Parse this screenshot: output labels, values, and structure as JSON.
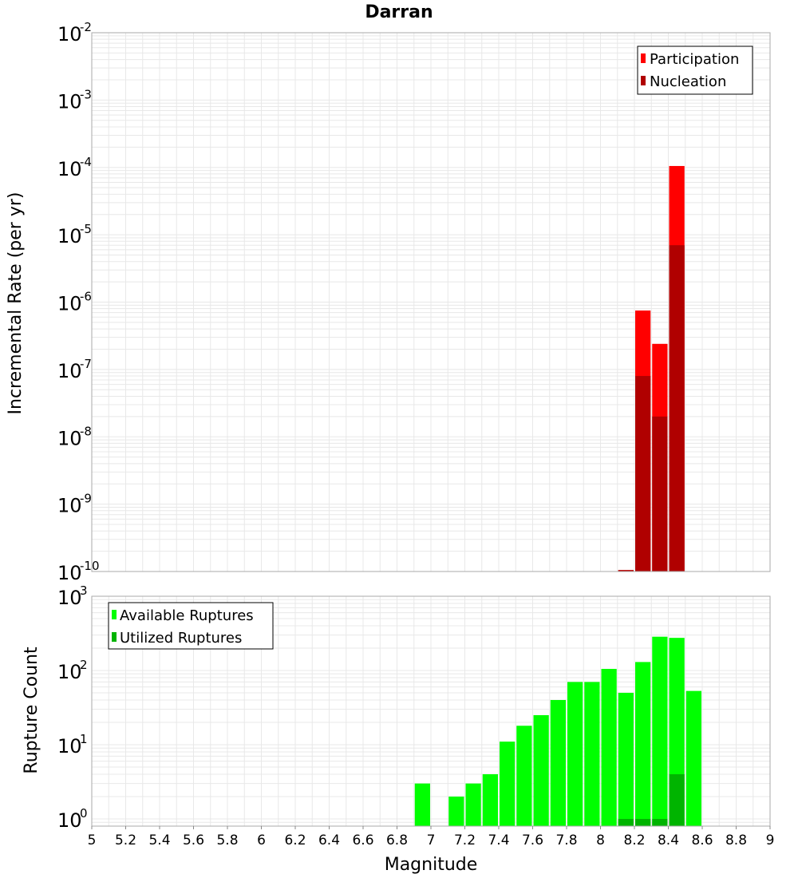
{
  "title": "Darran",
  "xlabel": "Magnitude",
  "x_ticks": [
    "5",
    "5.2",
    "5.4",
    "5.6",
    "5.8",
    "6",
    "6.2",
    "6.4",
    "6.6",
    "6.8",
    "7",
    "7.2",
    "7.4",
    "7.6",
    "7.8",
    "8",
    "8.2",
    "8.4",
    "8.6",
    "8.8",
    "9"
  ],
  "top_panel": {
    "ylabel": "Incremental Rate (per yr)",
    "y_tick_base": "10",
    "y_tick_exponents": [
      "-10",
      "-9",
      "-8",
      "-7",
      "-6",
      "-5",
      "-4",
      "-3",
      "-2"
    ],
    "legend": [
      "Participation",
      "Nucleation"
    ]
  },
  "bottom_panel": {
    "ylabel": "Rupture Count",
    "y_tick_base": "10",
    "y_tick_exponents": [
      "0",
      "1",
      "2",
      "3"
    ],
    "legend": [
      "Available Ruptures",
      "Utilized Ruptures"
    ]
  },
  "colors": {
    "participation": "#ff0000",
    "nucleation": "#b00000",
    "available": "#00ff00",
    "utilized": "#00b400",
    "grid": "#e8e8e8",
    "frame": "#aaaaaa"
  },
  "chart_data": [
    {
      "type": "bar",
      "title": "Darran",
      "xlabel": "Magnitude",
      "ylabel": "Incremental Rate (per yr)",
      "yscale": "log",
      "xlim": [
        5,
        9
      ],
      "ylim": [
        1e-10,
        0.01
      ],
      "bin_width": 0.1,
      "legend_position": "top-right",
      "grid": true,
      "series": [
        {
          "name": "Participation",
          "x": [
            8.15,
            8.25,
            8.35,
            8.45
          ],
          "values": [
            1.05e-10,
            7.5e-07,
            2.4e-07,
            0.000105
          ]
        },
        {
          "name": "Nucleation",
          "x": [
            8.15,
            8.25,
            8.35,
            8.45
          ],
          "values": [
            1.05e-10,
            8e-08,
            2e-08,
            7e-06
          ]
        }
      ]
    },
    {
      "type": "bar",
      "xlabel": "Magnitude",
      "ylabel": "Rupture Count",
      "yscale": "log",
      "xlim": [
        5,
        9
      ],
      "ylim": [
        0.8,
        1000
      ],
      "bin_width": 0.1,
      "legend_position": "top-left",
      "grid": true,
      "series": [
        {
          "name": "Available Ruptures",
          "x": [
            6.95,
            7.15,
            7.25,
            7.35,
            7.45,
            7.55,
            7.65,
            7.75,
            7.85,
            7.95,
            8.05,
            8.15,
            8.25,
            8.35,
            8.45,
            8.55
          ],
          "values": [
            3,
            2,
            3,
            4,
            11,
            18,
            25,
            40,
            70,
            70,
            105,
            50,
            130,
            285,
            275,
            53
          ]
        },
        {
          "name": "Utilized Ruptures",
          "x": [
            8.15,
            8.25,
            8.35,
            8.45
          ],
          "values": [
            1,
            1,
            1,
            4
          ]
        }
      ]
    }
  ]
}
